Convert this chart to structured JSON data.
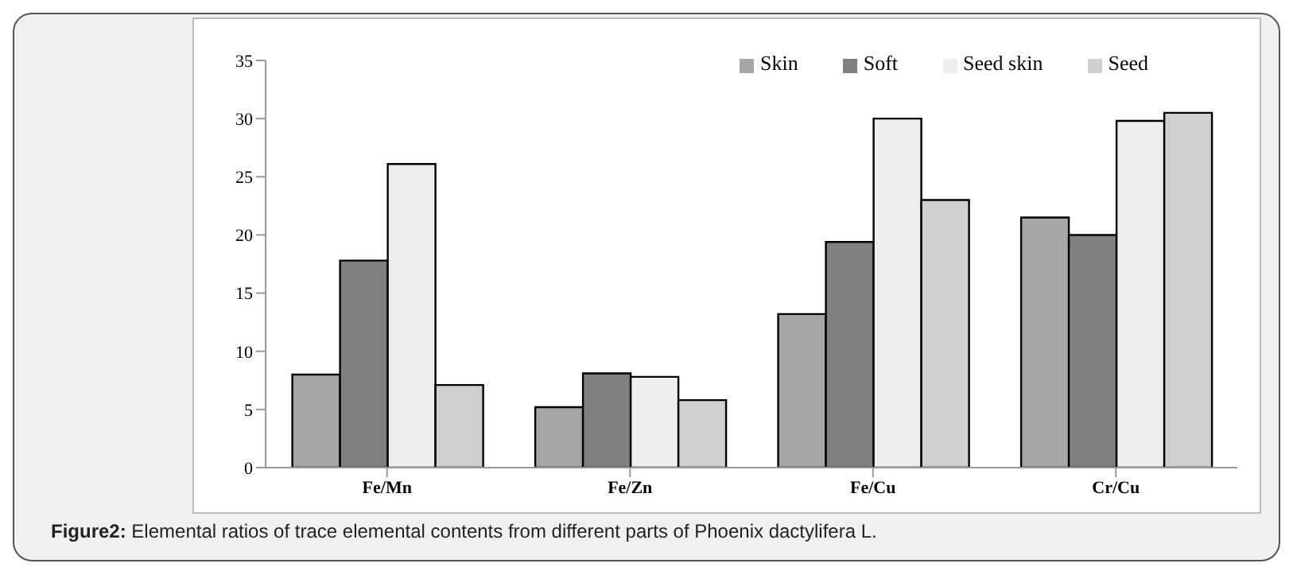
{
  "chart_data": {
    "type": "bar",
    "categories": [
      "Fe/Mn",
      "Fe/Zn",
      "Fe/Cu",
      "Cr/Cu"
    ],
    "series": [
      {
        "name": "Skin",
        "color": "#a6a6a6",
        "values": [
          8.0,
          5.2,
          13.2,
          21.5
        ]
      },
      {
        "name": "Soft",
        "color": "#808080",
        "values": [
          17.8,
          8.1,
          19.4,
          20.0
        ]
      },
      {
        "name": "Seed skin",
        "color": "#eeeeee",
        "values": [
          26.1,
          7.8,
          30.0,
          29.8
        ]
      },
      {
        "name": "Seed",
        "color": "#cfcfcf",
        "values": [
          7.1,
          5.8,
          23.0,
          30.5
        ]
      }
    ],
    "ylim": [
      0,
      35
    ],
    "yticks": [
      0,
      5,
      10,
      15,
      20,
      25,
      30,
      35
    ],
    "grid": false,
    "legend": "top right",
    "annotations": [
      "Figure2: Elemental ratios of trace elemental contents from different parts of Phoenix dactylifera L."
    ]
  }
}
